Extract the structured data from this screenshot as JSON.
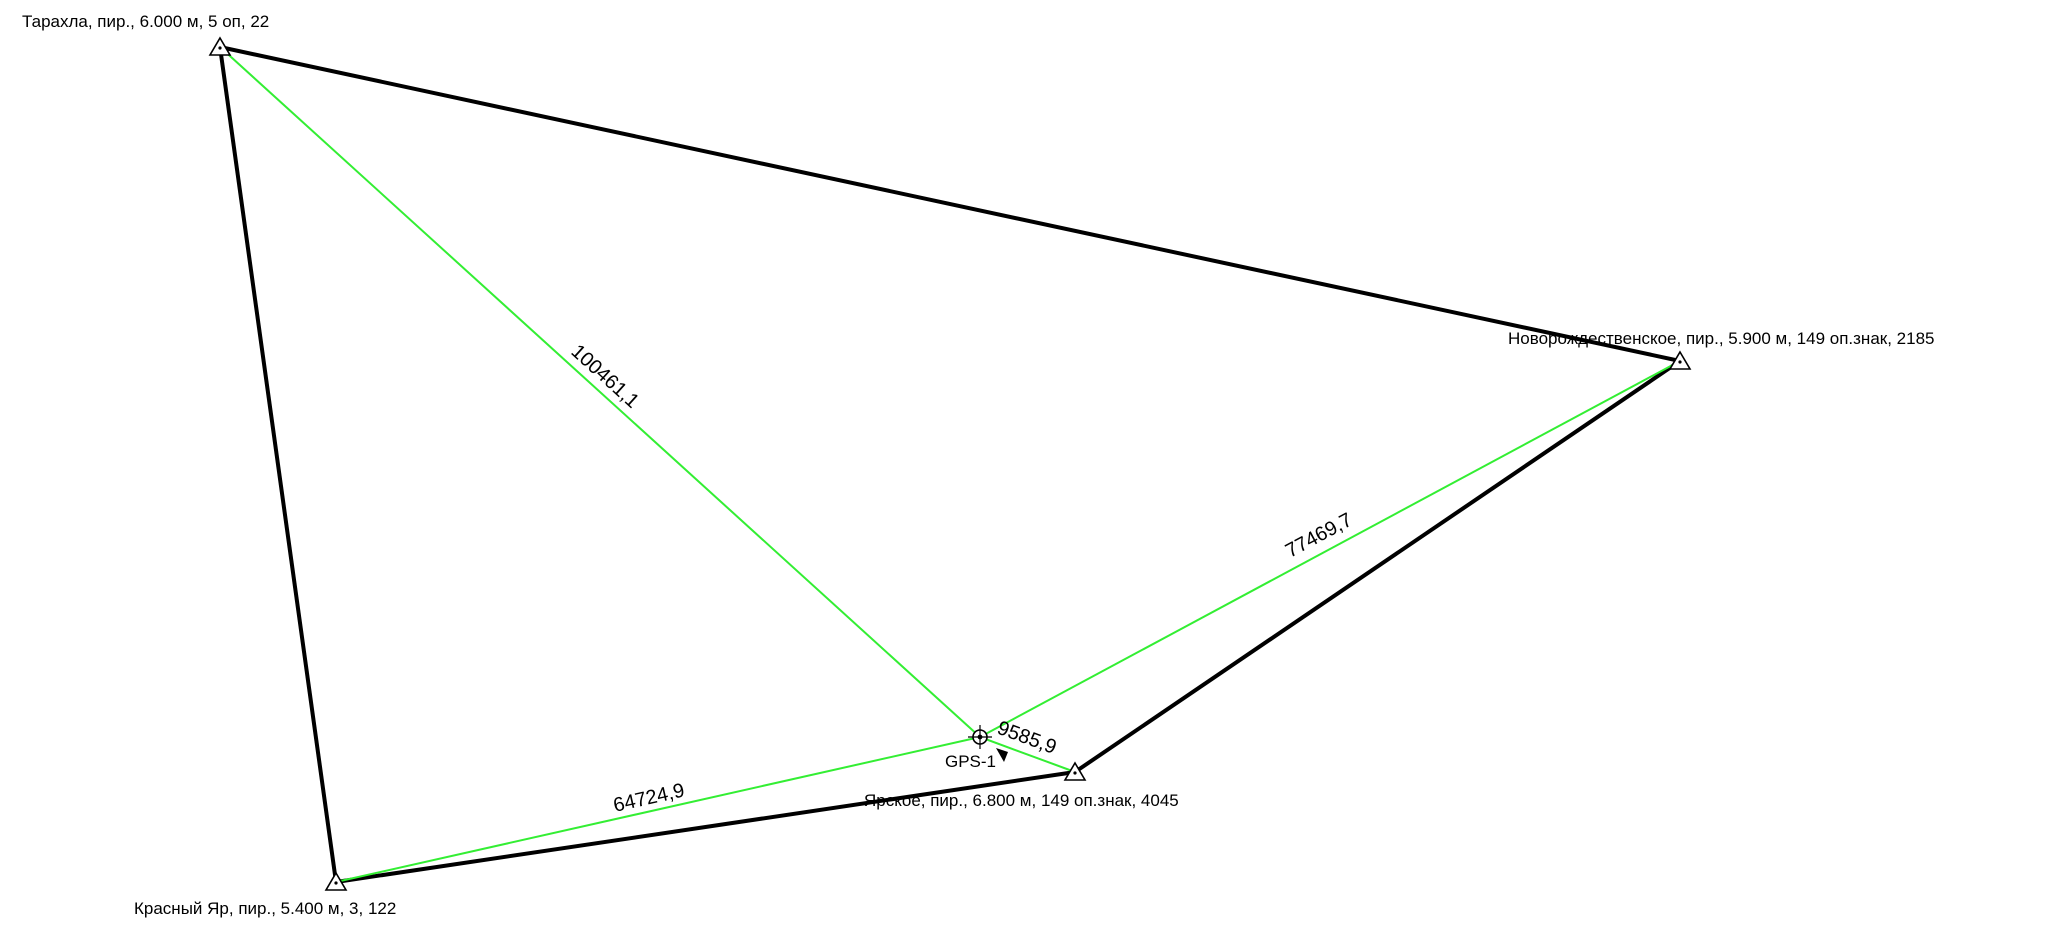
{
  "stations": {
    "tarakhla": {
      "label": "Тарахла, пир., 6.000 м, 5 оп, 22"
    },
    "novorozhd": {
      "label": "Новорождественское, пир., 5.900 м, 149 оп.знак, 2185"
    },
    "yarskoe": {
      "label": "Ярское, пир., 6.800 м, 149 оп.знак, 4045"
    },
    "krasny_yar": {
      "label": "Красный Яр, пир., 5.400 м, 3, 122"
    }
  },
  "gps_point": {
    "label": "GPS-1"
  },
  "distances": {
    "tarakhla_gps": "100461,1",
    "novorozhd_gps": "77469,7",
    "yarskoe_gps": "9585,9",
    "krasny_yar_gps": "64724,9"
  },
  "colors": {
    "network_line": "#000000",
    "observation_line": "#33ee33",
    "background": "#ffffff"
  }
}
